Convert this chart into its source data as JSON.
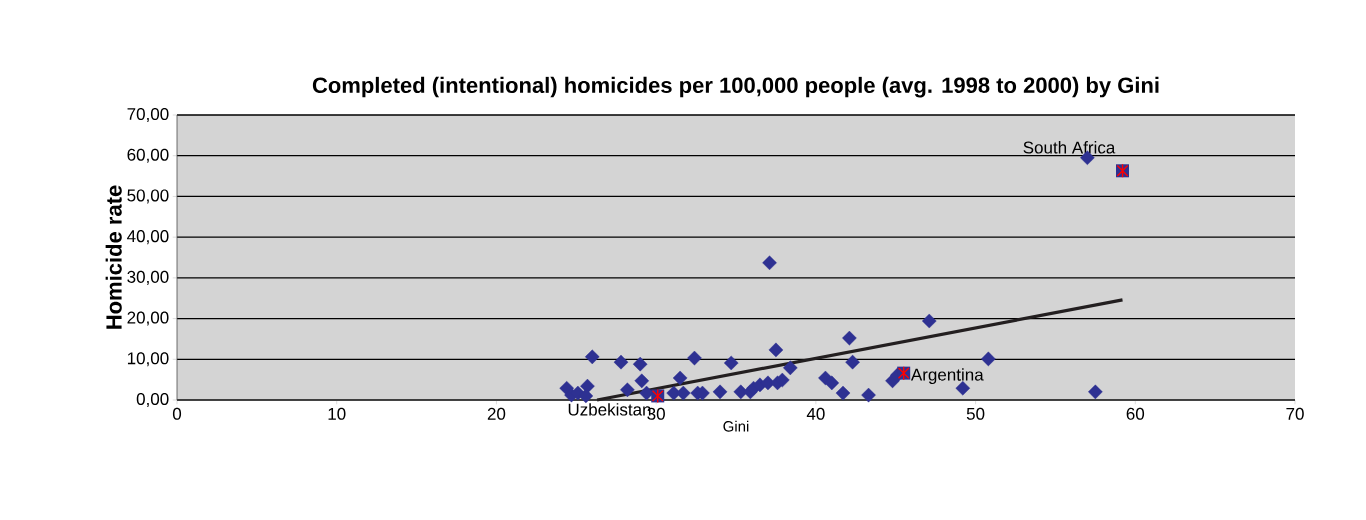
{
  "chart_data": {
    "type": "scatter",
    "title": "Completed (intentional) homicides per 100,000 people (avg. 1998 to 2000) by Gini",
    "xlabel": "Gini",
    "ylabel": "Homicide rate",
    "xlim": [
      0,
      70
    ],
    "ylim": [
      0,
      70
    ],
    "xticks": [
      0,
      10,
      20,
      30,
      40,
      50,
      60,
      70
    ],
    "yticks": [
      {
        "value": 0,
        "label": "0,00"
      },
      {
        "value": 10,
        "label": "10,00"
      },
      {
        "value": 20,
        "label": "20,00"
      },
      {
        "value": 30,
        "label": "30,00"
      },
      {
        "value": 40,
        "label": "40,00"
      },
      {
        "value": 50,
        "label": "50,00"
      },
      {
        "value": 60,
        "label": "60,00"
      },
      {
        "value": 70,
        "label": "70,00"
      }
    ],
    "grid": "y",
    "series": [
      {
        "marker": "diamond",
        "color": "#2e3192",
        "x": [
          24.4,
          24.7,
          25.1,
          25.5,
          25.7,
          26.0,
          25.6,
          27.8,
          28.2,
          29.0,
          29.1,
          29.4,
          31.1,
          31.5,
          31.7,
          32.4,
          32.6,
          32.9,
          34.0,
          34.7,
          35.3,
          35.9,
          36.1,
          36.5,
          37.0,
          37.1,
          37.5,
          37.6,
          37.9,
          38.4,
          40.6,
          41.0,
          41.7,
          42.1,
          42.3,
          43.3,
          44.8,
          45.1,
          47.1,
          49.2,
          50.8,
          57.0,
          57.5
        ],
        "values": [
          2.9,
          1.2,
          1.7,
          null,
          3.4,
          10.6,
          1.0,
          9.3,
          2.5,
          8.8,
          4.7,
          1.7,
          1.7,
          5.4,
          1.7,
          10.3,
          1.7,
          1.7,
          2.0,
          9.1,
          2.0,
          2.0,
          2.9,
          3.7,
          4.2,
          33.7,
          12.3,
          4.2,
          4.9,
          7.9,
          5.4,
          4.2,
          1.7,
          15.2,
          9.3,
          1.2,
          4.7,
          6.1,
          19.4,
          2.9,
          10.1,
          59.5,
          2.0
        ]
      },
      {
        "marker": "square",
        "color": "#2e3192",
        "x": [
          30.1,
          45.5,
          59.2
        ],
        "values": [
          1.0,
          6.6,
          56.3
        ]
      },
      {
        "type": "line",
        "marker": "none",
        "line_style": "solid",
        "color": "#231f20",
        "x": [
          26.3,
          59.2
        ],
        "values": [
          0,
          24.6
        ]
      }
    ],
    "annotations": [
      {
        "text": "Uzbekistan",
        "x": 30.1,
        "y": 1.0
      },
      {
        "text": "Argentina",
        "x": 45.5,
        "y": 6.6
      },
      {
        "text": "South Africa",
        "x": 59.2,
        "y": 56.3
      }
    ]
  }
}
